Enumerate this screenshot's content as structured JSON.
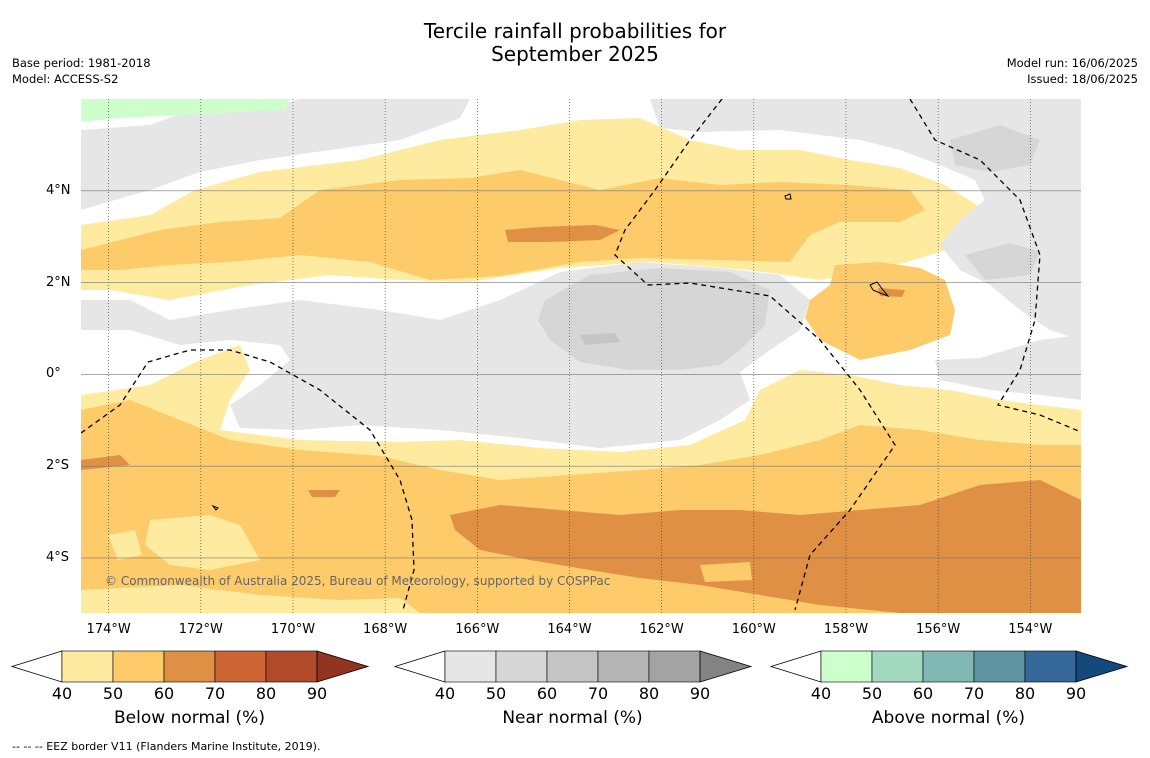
{
  "title_line1": "Tercile rainfall probabilities for",
  "title_line2": "September 2025",
  "meta_left": [
    "Base period: 1981-2018",
    "Model: ACCESS-S2"
  ],
  "meta_right": [
    "Model run: 16/06/2025",
    "Issued: 18/06/2025"
  ],
  "copyright": "© Commonwealth of Australia 2025, Bureau of Meteorology, supported by COSPPac",
  "footnote": "--  --  -- EEZ border V11 (Flanders Marine Institute, 2019).",
  "map": {
    "lon_range": [
      -174.6,
      -152.9
    ],
    "lat_range": [
      -5.2,
      6.0
    ],
    "lon_ticks": [
      {
        "value": -174,
        "label": "174°W"
      },
      {
        "value": -172,
        "label": "172°W"
      },
      {
        "value": -170,
        "label": "170°W"
      },
      {
        "value": -168,
        "label": "168°W"
      },
      {
        "value": -166,
        "label": "166°W"
      },
      {
        "value": -164,
        "label": "164°W"
      },
      {
        "value": -162,
        "label": "162°W"
      },
      {
        "value": -160,
        "label": "160°W"
      },
      {
        "value": -158,
        "label": "158°W"
      },
      {
        "value": -156,
        "label": "156°W"
      },
      {
        "value": -154,
        "label": "154°W"
      }
    ],
    "lat_ticks": [
      {
        "value": 4,
        "label": "4°N"
      },
      {
        "value": 2,
        "label": "2°N"
      },
      {
        "value": 0,
        "label": "0°"
      },
      {
        "value": -2,
        "label": "2°S"
      },
      {
        "value": -4,
        "label": "4°S"
      }
    ]
  },
  "colorbars": [
    {
      "title": "Below normal (%)",
      "ticks": [
        "40",
        "50",
        "60",
        "70",
        "80",
        "90"
      ],
      "colors": [
        "#ffeba0",
        "#fdcb69",
        "#df9044",
        "#cc6434",
        "#b04a28",
        "#923520"
      ]
    },
    {
      "title": "Near normal (%)",
      "ticks": [
        "40",
        "50",
        "60",
        "70",
        "80",
        "90"
      ],
      "colors": [
        "#e6e6e6",
        "#d6d6d6",
        "#c5c5c5",
        "#b4b4b4",
        "#a3a3a3",
        "#838383"
      ]
    },
    {
      "title": "Above normal (%)",
      "ticks": [
        "40",
        "50",
        "60",
        "70",
        "80",
        "90"
      ],
      "colors": [
        "#ccffcc",
        "#a3d9c0",
        "#82b8b4",
        "#5e94a1",
        "#356899",
        "#14497e"
      ]
    }
  ]
}
